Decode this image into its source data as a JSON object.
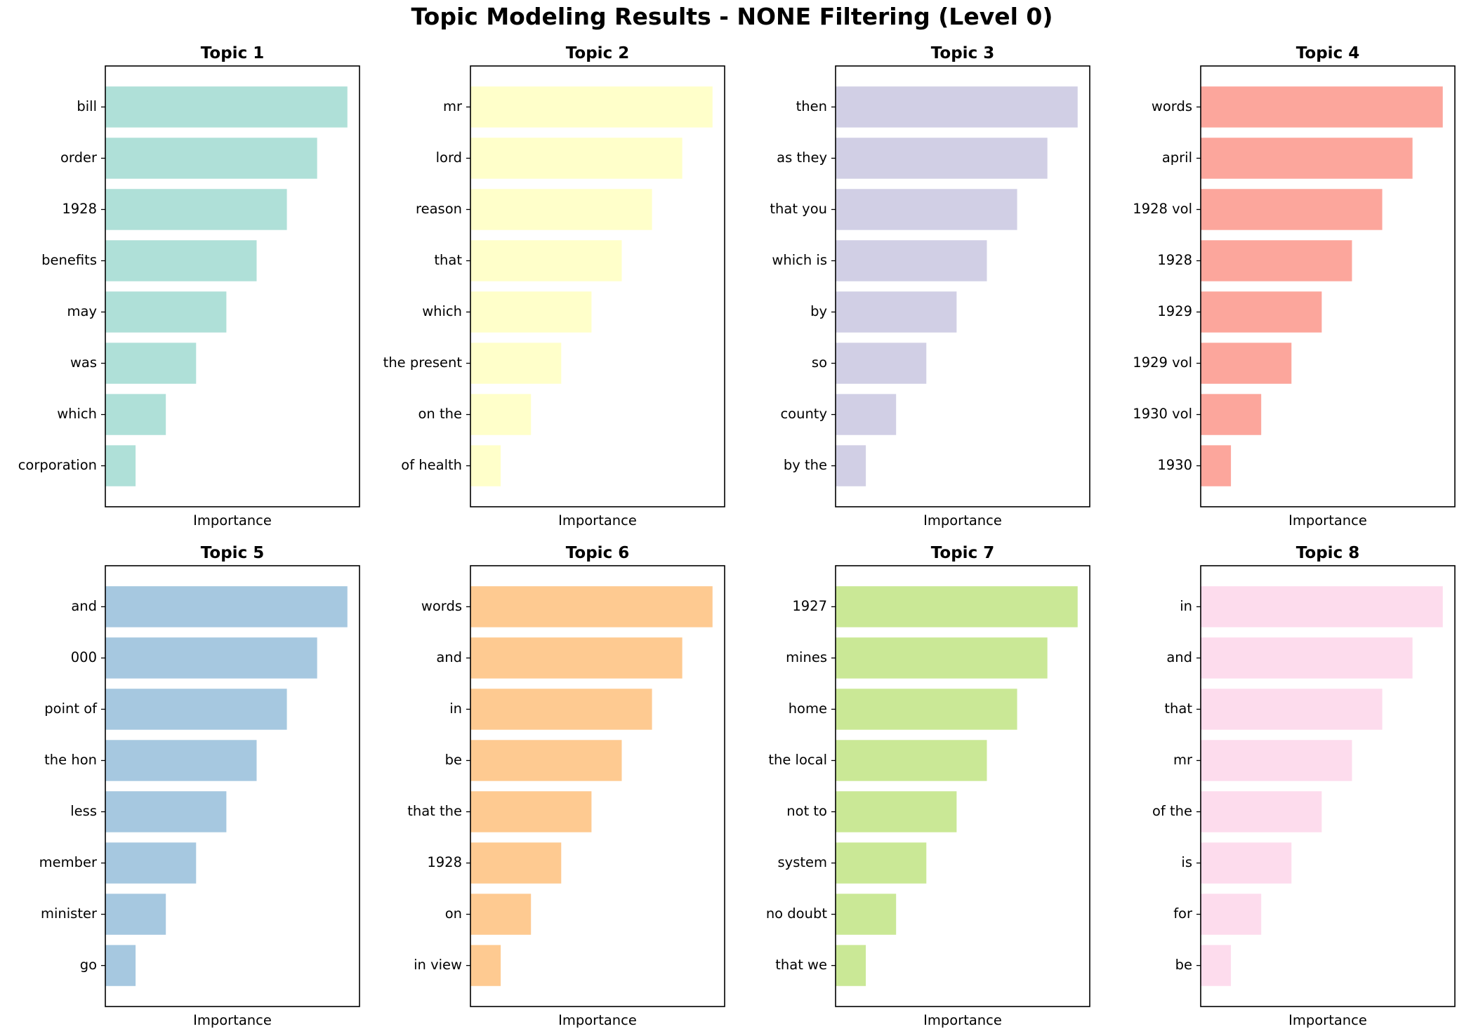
{
  "title": "Topic Modeling Results - NONE Filtering (Level 0)",
  "chart_data": [
    {
      "type": "bar",
      "orientation": "horizontal",
      "title": "Topic 1",
      "xlabel": "Importance",
      "color": "#8dd3c7",
      "categories": [
        "bill",
        "order",
        "1928",
        "benefits",
        "may",
        "was",
        "which",
        "corporation"
      ],
      "values": [
        8,
        7,
        6,
        5,
        4,
        3,
        2,
        1
      ],
      "xlim": [
        0,
        8.4
      ]
    },
    {
      "type": "bar",
      "orientation": "horizontal",
      "title": "Topic 2",
      "xlabel": "Importance",
      "color": "#ffffb3",
      "categories": [
        "mr",
        "lord",
        "reason",
        "that",
        "which",
        "the present",
        "on the",
        "of health"
      ],
      "values": [
        8,
        7,
        6,
        5,
        4,
        3,
        2,
        1
      ],
      "xlim": [
        0,
        8.4
      ]
    },
    {
      "type": "bar",
      "orientation": "horizontal",
      "title": "Topic 3",
      "xlabel": "Importance",
      "color": "#bebada",
      "categories": [
        "then",
        "as they",
        "that you",
        "which is",
        "by",
        "so",
        "county",
        "by the"
      ],
      "values": [
        8,
        7,
        6,
        5,
        4,
        3,
        2,
        1
      ],
      "xlim": [
        0,
        8.4
      ]
    },
    {
      "type": "bar",
      "orientation": "horizontal",
      "title": "Topic 4",
      "xlabel": "Importance",
      "color": "#fb8072",
      "categories": [
        "words",
        "april",
        "1928 vol",
        "1928",
        "1929",
        "1929 vol",
        "1930 vol",
        "1930"
      ],
      "values": [
        8,
        7,
        6,
        5,
        4,
        3,
        2,
        1
      ],
      "xlim": [
        0,
        8.4
      ]
    },
    {
      "type": "bar",
      "orientation": "horizontal",
      "title": "Topic 5",
      "xlabel": "Importance",
      "color": "#80b1d3",
      "categories": [
        "and",
        "000",
        "point of",
        "the hon",
        "less",
        "member",
        "minister",
        "go"
      ],
      "values": [
        8,
        7,
        6,
        5,
        4,
        3,
        2,
        1
      ],
      "xlim": [
        0,
        8.4
      ]
    },
    {
      "type": "bar",
      "orientation": "horizontal",
      "title": "Topic 6",
      "xlabel": "Importance",
      "color": "#fdb462",
      "categories": [
        "words",
        "and",
        "in",
        "be",
        "that the",
        "1928",
        "on",
        "in view"
      ],
      "values": [
        8,
        7,
        6,
        5,
        4,
        3,
        2,
        1
      ],
      "xlim": [
        0,
        8.4
      ]
    },
    {
      "type": "bar",
      "orientation": "horizontal",
      "title": "Topic 7",
      "xlabel": "Importance",
      "color": "#b3de69",
      "categories": [
        "1927",
        "mines",
        "home",
        "the local",
        "not to",
        "system",
        "no doubt",
        "that we"
      ],
      "values": [
        8,
        7,
        6,
        5,
        4,
        3,
        2,
        1
      ],
      "xlim": [
        0,
        8.4
      ]
    },
    {
      "type": "bar",
      "orientation": "horizontal",
      "title": "Topic 8",
      "xlabel": "Importance",
      "color": "#fccde5",
      "categories": [
        "in",
        "and",
        "that",
        "mr",
        "of the",
        "is",
        "for",
        "be"
      ],
      "values": [
        8,
        7,
        6,
        5,
        4,
        3,
        2,
        1
      ],
      "xlim": [
        0,
        8.4
      ]
    }
  ]
}
